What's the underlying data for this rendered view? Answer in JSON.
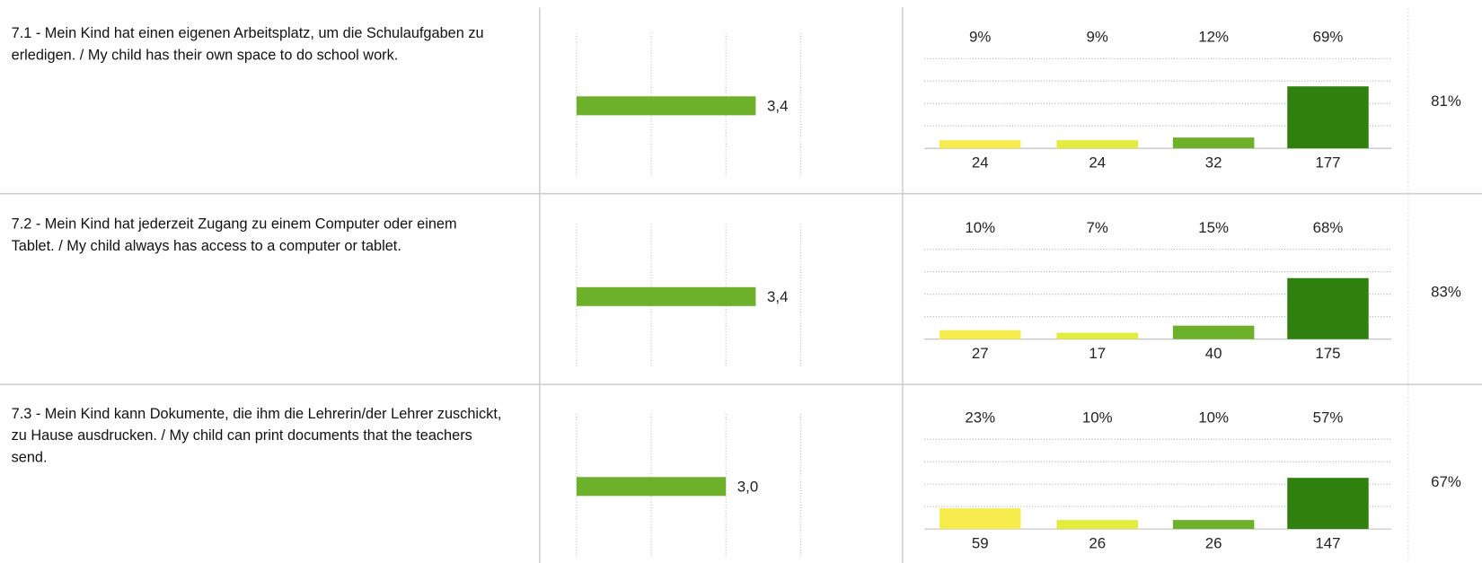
{
  "mean_scale": {
    "lim": [
      1,
      4
    ],
    "ticks": [
      1,
      2,
      3,
      4
    ],
    "color": "#6db12b"
  },
  "distribution_scale": {
    "lim": [
      0,
      100
    ],
    "ticks": [
      25,
      50,
      75,
      100
    ]
  },
  "colors": [
    "#f7ec4d",
    "#e2ec3c",
    "#6db12b",
    "#2f800f"
  ],
  "rows": [
    {
      "question": "7.1 - Mein Kind hat einen eigenen Arbeitsplatz, um die Schulaufgaben zu erledigen. / My child has their own space to do school work.",
      "mean": {
        "value": 3.4,
        "label": "3,4"
      },
      "percents": [
        {
          "value": 9,
          "label": "9%"
        },
        {
          "value": 9,
          "label": "9%"
        },
        {
          "value": 12,
          "label": "12%"
        },
        {
          "value": 69,
          "label": "69%"
        }
      ],
      "counts": [
        24,
        24,
        32,
        177
      ],
      "agree": {
        "value": 81,
        "label": "81%"
      }
    },
    {
      "question": "7.2 - Mein Kind hat jederzeit Zugang zu einem Computer oder einem Tablet. / My child always has access to a computer or tablet.",
      "mean": {
        "value": 3.4,
        "label": "3,4"
      },
      "percents": [
        {
          "value": 10,
          "label": "10%"
        },
        {
          "value": 7,
          "label": "7%"
        },
        {
          "value": 15,
          "label": "15%"
        },
        {
          "value": 68,
          "label": "68%"
        }
      ],
      "counts": [
        27,
        17,
        40,
        175
      ],
      "agree": {
        "value": 83,
        "label": "83%"
      }
    },
    {
      "question": "7.3 - Mein Kind kann Dokumente, die ihm die Lehrerin/der Lehrer zuschickt, zu Hause ausdrucken. / My child can print documents that the teachers send.",
      "mean": {
        "value": 3.0,
        "label": "3,0"
      },
      "percents": [
        {
          "value": 23,
          "label": "23%"
        },
        {
          "value": 10,
          "label": "10%"
        },
        {
          "value": 10,
          "label": "10%"
        },
        {
          "value": 57,
          "label": "57%"
        }
      ],
      "counts": [
        59,
        26,
        26,
        147
      ],
      "agree": {
        "value": 67,
        "label": "67%"
      }
    }
  ]
}
